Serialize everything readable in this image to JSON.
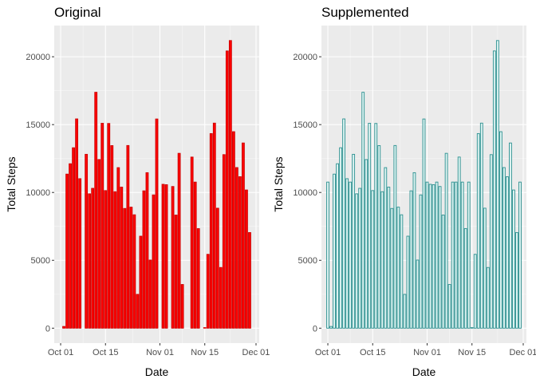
{
  "chart_data": [
    {
      "type": "bar",
      "title": "Original",
      "xlabel": "Date",
      "ylabel": "Total Steps",
      "x_tick_labels": [
        "Oct 01",
        "Oct 15",
        "Nov 01",
        "Nov 15",
        "Dec 01"
      ],
      "y_tick_labels": [
        "0",
        "5000",
        "10000",
        "15000",
        "20000"
      ],
      "x_ticks": [
        "2012-10-01",
        "2012-10-15",
        "2012-11-01",
        "2012-11-15",
        "2012-12-01"
      ],
      "y_ticks": [
        0,
        5000,
        10000,
        15000,
        20000
      ],
      "xlim": [
        "2012-09-29",
        "2012-12-02"
      ],
      "ylim": [
        -1100,
        22300
      ],
      "grid": true,
      "fill_color": "#ff0000",
      "edge_color": "#cc0000",
      "start_date": "2012-10-01",
      "values": [
        0,
        126,
        11352,
        12116,
        13294,
        15420,
        11015,
        0,
        12811,
        9900,
        10304,
        17382,
        12426,
        15098,
        10139,
        15084,
        13452,
        10056,
        11829,
        10395,
        8821,
        13460,
        8918,
        8355,
        2492,
        6778,
        10119,
        11458,
        5018,
        9819,
        15414,
        0,
        10600,
        10571,
        0,
        10439,
        8334,
        12883,
        3219,
        0,
        0,
        12608,
        10765,
        7336,
        0,
        41,
        5441,
        14339,
        15110,
        8841,
        4472,
        12787,
        20427,
        21194,
        14478,
        11834,
        11162,
        13646,
        10183,
        7047,
        0
      ]
    },
    {
      "type": "bar",
      "title": "Supplemented",
      "xlabel": "Date",
      "ylabel": "Total Steps",
      "x_tick_labels": [
        "Oct 01",
        "Oct 15",
        "Nov 01",
        "Nov 15",
        "Dec 01"
      ],
      "y_tick_labels": [
        "0",
        "5000",
        "10000",
        "15000",
        "20000"
      ],
      "x_ticks": [
        "2012-10-01",
        "2012-10-15",
        "2012-11-01",
        "2012-11-15",
        "2012-12-01"
      ],
      "y_ticks": [
        0,
        5000,
        10000,
        15000,
        20000
      ],
      "xlim": [
        "2012-09-29",
        "2012-12-02"
      ],
      "ylim": [
        -1100,
        22300
      ],
      "grid": true,
      "fill_color": "#e0f5f3",
      "edge_color": "#2a8f8f",
      "start_date": "2012-10-01",
      "values": [
        10766,
        126,
        11352,
        12116,
        13294,
        15420,
        11015,
        10766,
        12811,
        9900,
        10304,
        17382,
        12426,
        15098,
        10139,
        15084,
        13452,
        10056,
        11829,
        10395,
        8821,
        13460,
        8918,
        8355,
        2492,
        6778,
        10119,
        11458,
        5018,
        9819,
        15414,
        10766,
        10600,
        10571,
        10766,
        10439,
        8334,
        12883,
        3219,
        10766,
        10766,
        12608,
        10765,
        7336,
        10766,
        41,
        5441,
        14339,
        15110,
        8841,
        4472,
        12787,
        20427,
        21194,
        14478,
        11834,
        11162,
        13646,
        10183,
        7047,
        10766
      ]
    }
  ]
}
